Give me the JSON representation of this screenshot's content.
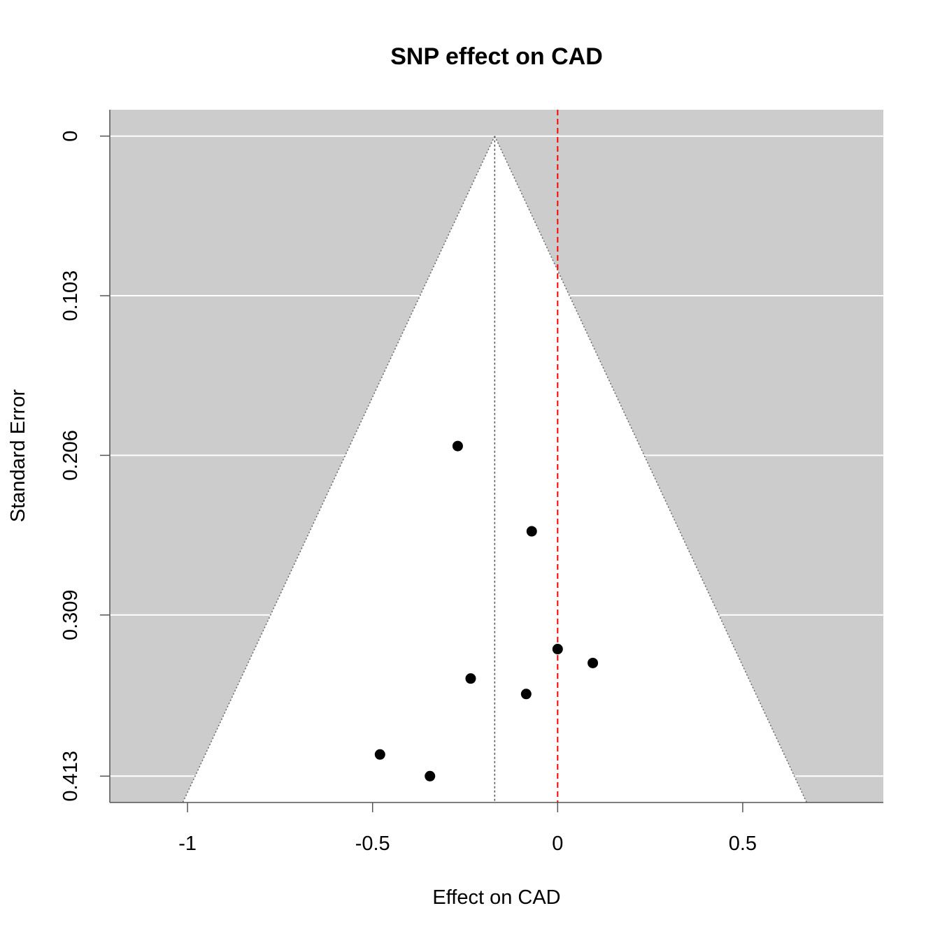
{
  "chart_data": {
    "type": "scatter",
    "subtype": "funnel",
    "title": "SNP effect on CAD",
    "xlabel": "Effect on CAD",
    "ylabel": "Standard Error",
    "xlim": [
      -1.21,
      0.88
    ],
    "ylim": [
      0.43,
      -0.017
    ],
    "y_reversed": true,
    "x_ticks": [
      -1,
      -0.5,
      0,
      0.5
    ],
    "x_tick_labels": [
      "-1",
      "-0.5",
      "0",
      "0.5"
    ],
    "y_ticks": [
      0,
      0.103,
      0.206,
      0.309,
      0.413
    ],
    "y_tick_labels": [
      "0",
      "0.103",
      "0.206",
      "0.309",
      "0.413"
    ],
    "grid": "horizontal white lines at y ticks",
    "background_color": "#cccccc",
    "funnel": {
      "center": -0.17,
      "apex_se": 0,
      "half_width_factor": 1.96,
      "fill_color": "#ffffff",
      "edge_color": "#666666"
    },
    "reference_line": {
      "x": 0,
      "color": "#ff0000",
      "style": "dashed"
    },
    "center_line": {
      "x": -0.17,
      "color": "#555555",
      "style": "dotted"
    },
    "points": [
      {
        "x": -0.27,
        "y": 0.2
      },
      {
        "x": -0.07,
        "y": 0.255
      },
      {
        "x": 0.0,
        "y": 0.331
      },
      {
        "x": 0.095,
        "y": 0.34
      },
      {
        "x": -0.235,
        "y": 0.35
      },
      {
        "x": -0.085,
        "y": 0.36
      },
      {
        "x": -0.48,
        "y": 0.399
      },
      {
        "x": -0.345,
        "y": 0.413
      }
    ],
    "point_color": "#000000"
  }
}
